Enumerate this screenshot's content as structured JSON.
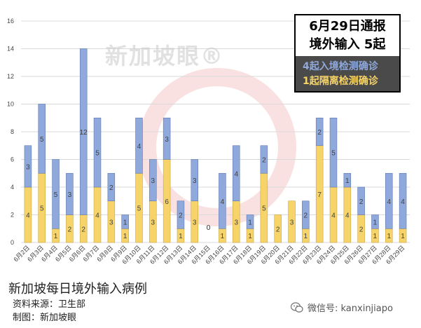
{
  "chart_data": {
    "type": "bar",
    "stacked": true,
    "categories": [
      "6月2日",
      "6月3日",
      "6月4日",
      "6月5日",
      "6月6日",
      "6月7日",
      "6月8日",
      "6月9日",
      "6月10日",
      "6月11日",
      "6月12日",
      "6月13日",
      "6月14日",
      "6月15日",
      "6月16日",
      "6月17日",
      "6月18日",
      "6月19日",
      "6月20日",
      "6月21日",
      "6月22日",
      "6月23日",
      "6月24日",
      "6月25日",
      "6月26日",
      "6月27日",
      "6月28日",
      "6月29日"
    ],
    "series": [
      {
        "name": "1起隔离检测确诊",
        "color": "#f7d46a",
        "values": [
          4,
          5,
          1,
          2,
          2,
          4,
          3,
          1,
          5,
          3,
          6,
          1,
          3,
          0,
          1,
          3,
          1,
          5,
          2,
          3,
          1,
          7,
          4,
          4,
          2,
          1,
          1,
          1
        ]
      },
      {
        "name": "4起入境检测确诊",
        "color": "#8fa9dc",
        "values": [
          3,
          5,
          5,
          3,
          12,
          5,
          2,
          1,
          4,
          3,
          3,
          2,
          3,
          0,
          4,
          4,
          1,
          2,
          0,
          0,
          2,
          2,
          5,
          1,
          2,
          1,
          4,
          4
        ]
      }
    ],
    "ylim": [
      0,
      16
    ],
    "yticks": [
      0,
      2,
      4,
      6,
      8,
      10,
      12,
      14,
      16
    ],
    "grid": true,
    "zero_label": "0",
    "legend_position": "top-right"
  },
  "info_box": {
    "title_line1": "6月29日通报",
    "title_line2": "境外输入 5起",
    "line1": "4起入境检测确诊",
    "line2": "1起隔离检测确诊"
  },
  "watermark": "新加坡眼®",
  "footer": {
    "title": "新加坡每日境外输入病例",
    "source": "资料来源：卫生部",
    "made_by": "制图：新加坡眼",
    "wechat": "微信号: kanxinjiapo"
  },
  "colors": {
    "line1": "#8fa9dc",
    "line2": "#f7d46a",
    "gridline": "#d9d9d9"
  },
  "icons": {
    "wechat": "wechat-icon"
  }
}
